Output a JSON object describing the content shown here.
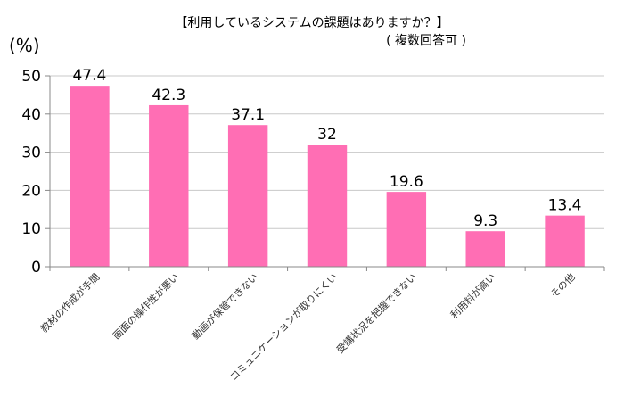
{
  "chart_data": {
    "type": "bar",
    "title": "【利用しているシステムの課題はありますか？】",
    "subtitle": "( 複数回答可 )",
    "ylabel": "(%)",
    "xlabel": "",
    "categories": [
      "教材の作成が手間",
      "画面の操作性が悪い",
      "動画が保管できない",
      "コミュニケーションが取りにくい",
      "受講状況を把握できない",
      "利用料が高い",
      "その他"
    ],
    "values": [
      47.4,
      42.3,
      37.1,
      32,
      19.6,
      9.3,
      13.4
    ],
    "value_labels": [
      "47.4",
      "42.3",
      "37.1",
      "32",
      "19.6",
      "9.3",
      "13.4"
    ],
    "ylim": [
      0,
      50
    ],
    "yticks": [
      0,
      10,
      20,
      30,
      40,
      50
    ],
    "grid": true,
    "legend": "none",
    "colors": {
      "bar": "#ff6eb4",
      "grid": "#c8c8c8",
      "axis": "#888888"
    }
  }
}
